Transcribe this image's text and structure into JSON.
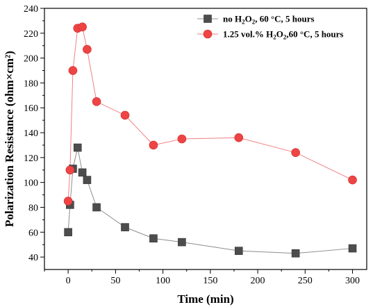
{
  "chart_data": {
    "type": "line",
    "xlabel": "Time (min)",
    "ylabel": "Polarization Resistance (ohm×cm²)",
    "xlim": [
      -25,
      315
    ],
    "ylim": [
      30,
      240
    ],
    "xticks": [
      0,
      50,
      100,
      150,
      200,
      250,
      300
    ],
    "yticks": [
      40,
      60,
      80,
      100,
      120,
      140,
      160,
      180,
      200,
      220,
      240
    ],
    "grid": false,
    "legend_position": "top-right",
    "series": [
      {
        "name_parts": [
          "no H",
          "2",
          "O",
          "2",
          ", 60 °C, 5 hours"
        ],
        "marker": "square",
        "marker_color": "#4d4d4d",
        "line_color": "#8c8c8c",
        "x": [
          0,
          2,
          5,
          10,
          15,
          20,
          30,
          60,
          90,
          120,
          180,
          240,
          300
        ],
        "y": [
          60,
          82,
          111,
          128,
          108,
          102,
          80,
          64,
          55,
          52,
          45,
          43,
          47
        ]
      },
      {
        "name_parts": [
          "1.25 vol.% H",
          "2",
          "O",
          "2",
          ",60 °C, 5 hours"
        ],
        "marker": "circle",
        "marker_color": "#ef4444",
        "line_color": "#f08080",
        "x": [
          0,
          2,
          5,
          10,
          15,
          20,
          30,
          60,
          90,
          120,
          180,
          240,
          300
        ],
        "y": [
          85,
          110,
          190,
          224,
          225,
          207,
          165,
          154,
          130,
          135,
          136,
          124,
          102
        ]
      }
    ]
  }
}
